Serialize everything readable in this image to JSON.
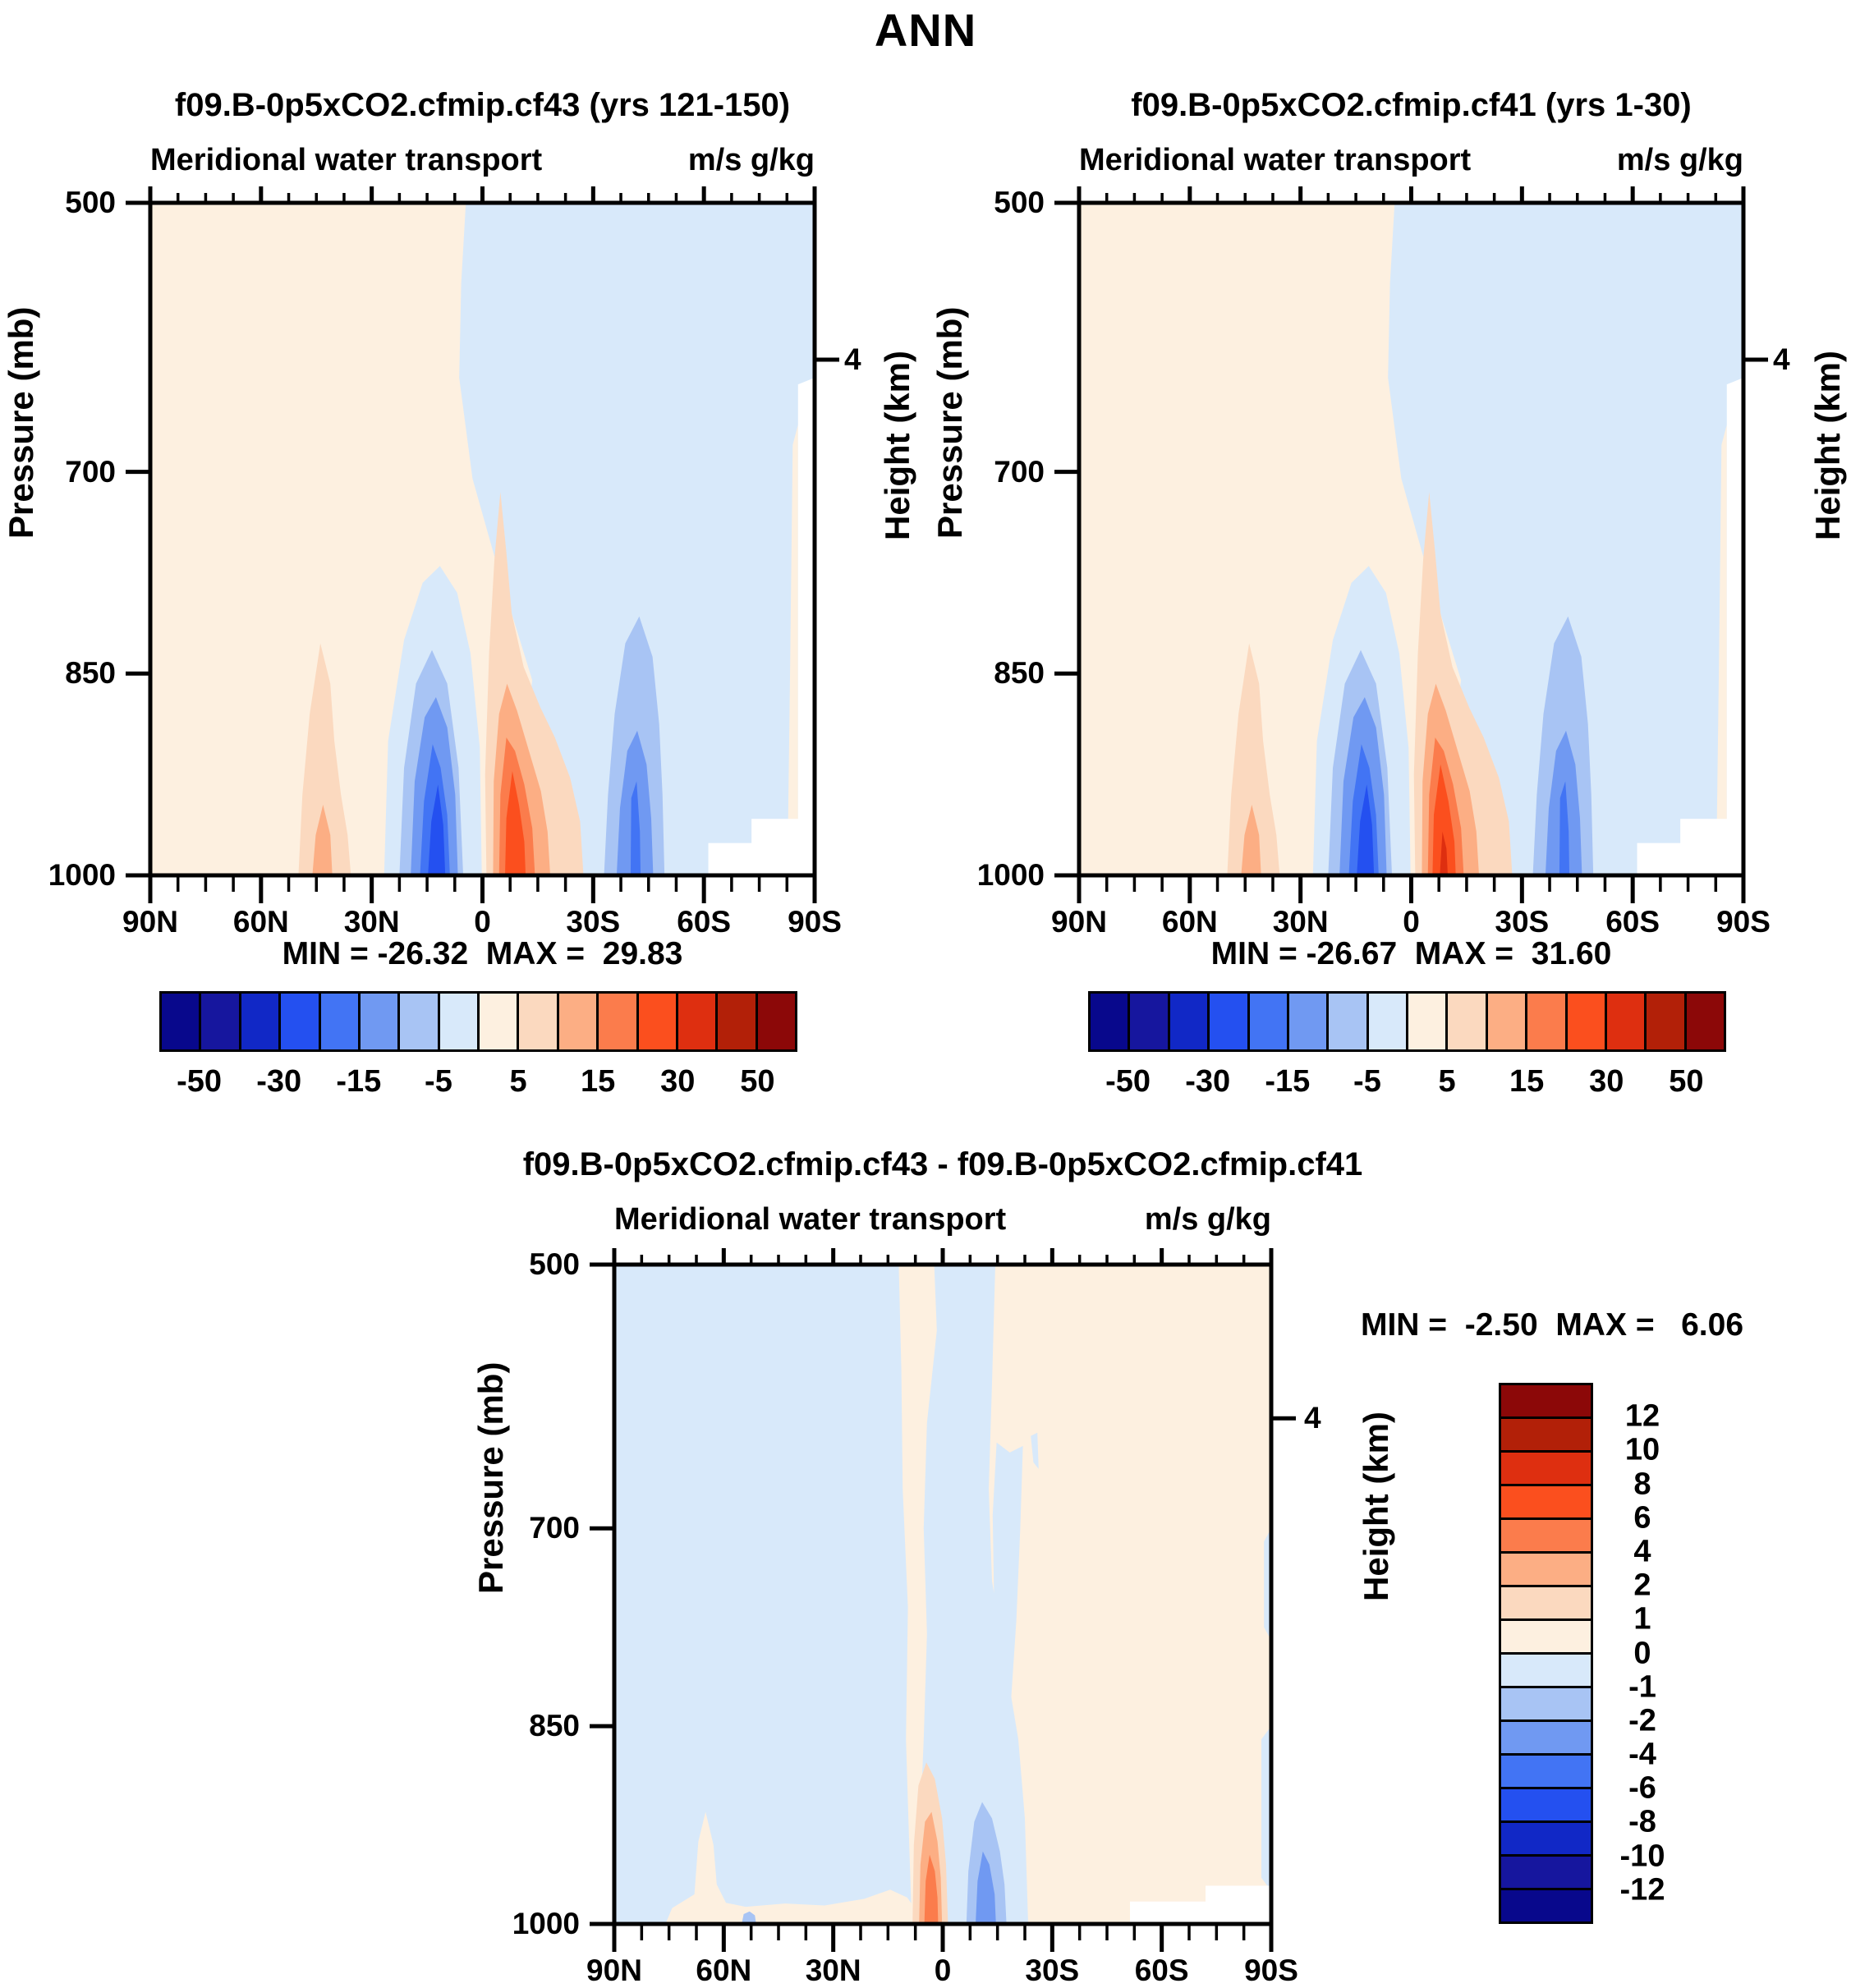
{
  "title": "ANN",
  "shared": {
    "field_label": "Meridional water transport",
    "units": "m/s g/kg",
    "y_axis_label": "Pressure (mb)",
    "right_axis_label": "Height (km)",
    "height_tick_label": "4",
    "x_tick_labels": [
      "90N",
      "60N",
      "30N",
      "0",
      "30S",
      "60S",
      "90S"
    ],
    "y_tick_labels": [
      "500",
      "700",
      "850",
      "1000"
    ]
  },
  "palette": [
    "#08088C",
    "#16169E",
    "#1128C6",
    "#2450F0",
    "#4274F4",
    "#7099F2",
    "#A8C4F4",
    "#D8E9FA",
    "#FDF0E0",
    "#FBD9BF",
    "#FCAE84",
    "#FB7C4C",
    "#FB4F1E",
    "#DE2F10",
    "#B22008",
    "#8C0808"
  ],
  "colorbar_h_labels": [
    "-50",
    "-30",
    "-15",
    "-5",
    "5",
    "15",
    "30",
    "50"
  ],
  "colorbar_v_labels": [
    "12",
    "10",
    "8",
    "6",
    "4",
    "2",
    "1",
    "0",
    "-1",
    "-2",
    "-4",
    "-6",
    "-8",
    "-10",
    "-12"
  ],
  "panels": {
    "left": {
      "title": "f09.B-0p5xCO2.cfmip.cf43 (yrs 121-150)",
      "stats": "MIN = -26.32  MAX =  29.83"
    },
    "right": {
      "title": "f09.B-0p5xCO2.cfmip.cf41 (yrs 1-30)",
      "stats": "MIN = -26.67  MAX =  31.60"
    },
    "diff": {
      "title": "f09.B-0p5xCO2.cfmip.cf43 - f09.B-0p5xCO2.cfmip.cf41",
      "stats": "MIN =  -2.50  MAX =   6.06"
    }
  },
  "chart_data": [
    {
      "type": "heatmap",
      "subtype": "filled-contour latitude-pressure cross-section",
      "title": "f09.B-0p5xCO2.cfmip.cf43 (yrs 121-150)",
      "variable": "Meridional water transport",
      "units": "m/s g/kg",
      "season": "ANN",
      "xlabel": "latitude",
      "x_ticks": [
        "90N",
        "60N",
        "30N",
        "0",
        "30S",
        "60S",
        "90S"
      ],
      "ylabel": "Pressure (mb)",
      "y_ticks": [
        500,
        700,
        850,
        1000
      ],
      "y2label": "Height (km)",
      "y2_ticks": [
        4
      ],
      "min": -26.32,
      "max": 29.83,
      "contour_levels": [
        -50,
        -40,
        -30,
        -20,
        -15,
        -10,
        -5,
        0,
        5,
        10,
        15,
        20,
        30,
        40,
        50
      ],
      "labeled_levels": [
        -50,
        -30,
        -15,
        -5,
        5,
        15,
        30,
        50
      ],
      "legend_position": "horizontal colorbar below panel",
      "grid": false,
      "features": [
        "weak positive (0 to 5) background over NH from 90N to ~0-5N at all levels",
        "weak negative (-5 to 0) background over SH mid/high latitudes",
        "positive cell (5 to 15) near 40-50N below ~850 mb",
        "strong negative cell, core -20 to -26 (min -26.32), centered ~10-15N near 950-1000 mb",
        "strong positive cell, core 20 to 30 (max 29.83), centered ~5-15S near surface extending to ~700 mb near 5S",
        "moderate negative cell (-10 to -15) centered ~40S below ~800 mb",
        "white masked topography (Antarctica) ~60-90S below ~950 mb"
      ]
    },
    {
      "type": "heatmap",
      "subtype": "filled-contour latitude-pressure cross-section",
      "title": "f09.B-0p5xCO2.cfmip.cf41 (yrs 1-30)",
      "variable": "Meridional water transport",
      "units": "m/s g/kg",
      "season": "ANN",
      "xlabel": "latitude",
      "x_ticks": [
        "90N",
        "60N",
        "30N",
        "0",
        "30S",
        "60S",
        "90S"
      ],
      "ylabel": "Pressure (mb)",
      "y_ticks": [
        500,
        700,
        850,
        1000
      ],
      "y2label": "Height (km)",
      "y2_ticks": [
        4
      ],
      "min": -26.67,
      "max": 31.6,
      "contour_levels": [
        -50,
        -40,
        -30,
        -20,
        -15,
        -10,
        -5,
        0,
        5,
        10,
        15,
        20,
        30,
        40,
        50
      ],
      "labeled_levels": [
        -50,
        -30,
        -15,
        -5,
        5,
        15,
        30,
        50
      ],
      "legend_position": "horizontal colorbar below panel",
      "grid": false,
      "features": [
        "field nearly identical to cf43 panel",
        "strong negative cell (min -26.67) centered ~10-15N near surface",
        "strong positive cell (max 31.60, small core exceeding 30) centered ~5-15S near surface",
        "moderate negative cell centered ~40S below ~800 mb",
        "white masked topography ~60-90S below ~950 mb"
      ]
    },
    {
      "type": "heatmap",
      "subtype": "filled-contour latitude-pressure difference section",
      "title": "f09.B-0p5xCO2.cfmip.cf43 - f09.B-0p5xCO2.cfmip.cf41",
      "variable": "Meridional water transport",
      "units": "m/s g/kg",
      "season": "ANN",
      "xlabel": "latitude",
      "x_ticks": [
        "90N",
        "60N",
        "30N",
        "0",
        "30S",
        "60S",
        "90S"
      ],
      "ylabel": "Pressure (mb)",
      "y_ticks": [
        500,
        700,
        850,
        1000
      ],
      "y2label": "Height (km)",
      "y2_ticks": [
        4
      ],
      "min": -2.5,
      "max": 6.06,
      "contour_levels": [
        -12,
        -10,
        -8,
        -6,
        -4,
        -2,
        -1,
        0,
        1,
        2,
        4,
        6,
        8,
        10,
        12
      ],
      "labeled_levels": [
        12,
        10,
        8,
        6,
        4,
        2,
        1,
        0,
        -1,
        -2,
        -4,
        -6,
        -8,
        -10,
        -12
      ],
      "legend_position": "vertical colorbar at right",
      "grid": false,
      "features": [
        "weak negative (-1 to 0) over most of NH",
        "weak positive (0 to 1) over most of SH and a narrow full-depth column near 0-5N",
        "positive cell (max 6.06, core 4-6) near 0-5S below ~900 mb",
        "negative cell (min -2.50, core -4 to -2) near 5-12S below ~900 mb",
        "small positive bump near 65-72N at surface",
        "white masked topography ~65-90S near surface"
      ]
    }
  ],
  "fields": {
    "left": [
      {
        "c": 8,
        "r": [
          0,
          0,
          100,
          100
        ],
        "n": "background-positive"
      },
      {
        "c": 7,
        "p": "47.5,0 100,0 100,100 57.5,100 55.5,86 57.5,71 52.5,55 48.5,41 46.5,26 46.8,12",
        "n": "background-negative-sh"
      },
      {
        "c": 7,
        "p": "35.2,100 35.8,80 38.2,65 41,56.5 43.6,54 46.2,58 48.2,67 49.6,81 49.9,100",
        "n": "nh-negative-dome"
      },
      {
        "c": 6,
        "p": "37.5,100 38.2,84 40,71.5 42.4,66.5 44.7,71.5 46.4,84 47.1,100",
        "n": "nh-negative-cell"
      },
      {
        "c": 5,
        "p": "39.2,100 39.8,86 41.3,76.5 43,73.5 44.7,78 45.9,88 46.3,100",
        "n": "nh-negative-cell"
      },
      {
        "c": 4,
        "p": "40.6,100 41.2,89 42.5,80.5 43.7,84 44.7,91 45.1,100",
        "n": "nh-negative-cell"
      },
      {
        "c": 3,
        "p": "41.8,100 42.3,92 43.3,86.5 44.1,92.5 44.4,100",
        "n": "nh-negative-core"
      },
      {
        "c": 9,
        "p": "50.6,100 50.4,85 51,67 51.8,53 52.7,43 53.6,52 54.4,61 56.2,69 58.7,75 60.9,79.5 63.2,85.5 64.7,92 65.2,100",
        "n": "sh-positive-mass"
      },
      {
        "c": 10,
        "p": "51.6,100 51.7,86 52.5,76 53.7,71.5 55.2,75.5 57,81.5 58.8,87.5 59.8,93.5 60.2,100",
        "n": "sh-positive-cell"
      },
      {
        "c": 11,
        "p": "52.5,100 52.7,88 53.6,79.5 54.9,81.5 56.3,86.5 57.5,93 57.9,100",
        "n": "sh-positive-cell"
      },
      {
        "c": 12,
        "p": "53.4,100 53.6,91.5 54.5,84.5 55.5,89.5 56.3,95 56.5,100",
        "n": "sh-positive-core"
      },
      {
        "c": 9,
        "p": "22.3,100 22.9,88 24,76 25.6,65.5 27.1,71.5 27.7,80 28.7,88 29.7,94 30.2,100",
        "n": "nh-midlat-positive"
      },
      {
        "c": 10,
        "p": "24.4,100 24.9,94 26,89.5 27.1,94 27.4,100",
        "n": "nh-midlat-positive-core"
      },
      {
        "c": 6,
        "p": "68.3,100 68.9,88 69.9,76 71.5,65.5 73.6,61.5 75.6,67.5 76.6,77.5 77.1,88 77.4,100",
        "n": "sh-midlat-negative"
      },
      {
        "c": 5,
        "p": "70.2,100 70.7,90 71.8,81.5 73.3,78.5 74.7,83.5 75.4,91.5 75.7,100",
        "n": "sh-midlat-negative-cell"
      },
      {
        "c": 4,
        "p": "72.3,100 72.4,88.5 73.2,86 73.7,93.5 73.8,100",
        "n": "sh-midlat-negative-streak"
      },
      {
        "c": 8,
        "p": "95.9,100 96.3,70 96.7,36 97.5,33 97.5,100",
        "n": "polar-edge-positive-sliver"
      },
      {
        "c": "w",
        "p": "97.5,27 100,26 100,100 97.5,100",
        "n": "topography-mask"
      },
      {
        "c": "w",
        "r": [
          84,
          95.2,
          16,
          4.8
        ],
        "n": "topography-mask"
      },
      {
        "c": "w",
        "r": [
          90.5,
          91.6,
          9.5,
          8.4
        ],
        "n": "topography-mask"
      }
    ],
    "right": [
      {
        "c": 8,
        "r": [
          0,
          0,
          100,
          100
        ],
        "n": "background-positive"
      },
      {
        "c": 7,
        "p": "47.5,0 100,0 100,100 57.5,100 55.5,86 57.5,71 52.5,55 48.5,41 46.5,26 46.8,12",
        "n": "background-negative-sh"
      },
      {
        "c": 7,
        "p": "35.2,100 35.8,80 38.2,65 41,56.5 43.6,54 46.2,58 48.2,67 49.6,81 49.9,100",
        "n": "nh-negative-dome"
      },
      {
        "c": 6,
        "p": "37.5,100 38.2,84 40,71.5 42.4,66.5 44.7,71.5 46.4,84 47.1,100",
        "n": "nh-negative-cell"
      },
      {
        "c": 5,
        "p": "39.2,100 39.8,86 41.3,76.5 43,73.5 44.7,78 45.9,88 46.3,100",
        "n": "nh-negative-cell"
      },
      {
        "c": 4,
        "p": "40.6,100 41.2,89 42.5,80.5 43.7,84 44.7,91 45.1,100",
        "n": "nh-negative-cell"
      },
      {
        "c": 3,
        "p": "41.8,100 42.3,92 43.3,86.5 44.1,92.5 44.4,100",
        "n": "nh-negative-core"
      },
      {
        "c": 9,
        "p": "50.6,100 50.4,85 51,67 51.8,53 52.7,43 53.6,52 54.4,61 56.2,69 58.7,75 60.9,79.5 63.2,85.5 64.7,92 65.2,100",
        "n": "sh-positive-mass"
      },
      {
        "c": 10,
        "p": "51.6,100 51.7,86 52.5,76 53.7,71.5 55.2,75.5 57,81.5 58.8,87.5 59.8,93.5 60.2,100",
        "n": "sh-positive-cell"
      },
      {
        "c": 11,
        "p": "52.5,100 52.7,88 53.6,79.5 54.9,81.5 56.3,86.5 57.5,93 57.9,100",
        "n": "sh-positive-cell"
      },
      {
        "c": 12,
        "p": "53.2,100 53.4,91 54.4,83.5 55.6,89 56.5,95 56.7,100",
        "n": "sh-positive-core"
      },
      {
        "c": 13,
        "p": "54.3,100 54.7,93.5 55.3,96 55.5,100",
        "n": "sh-positive-core-max"
      },
      {
        "c": 9,
        "p": "22.3,100 22.9,88 24,76 25.6,65.5 27.1,71.5 27.7,80 28.7,88 29.7,94 30.2,100",
        "n": "nh-midlat-positive"
      },
      {
        "c": 10,
        "p": "24.4,100 24.9,94 26,89.5 27.1,94 27.4,100",
        "n": "nh-midlat-positive-core"
      },
      {
        "c": 6,
        "p": "68.3,100 68.9,88 69.9,76 71.5,65.5 73.6,61.5 75.6,67.5 76.6,77.5 77.1,88 77.4,100",
        "n": "sh-midlat-negative"
      },
      {
        "c": 5,
        "p": "70.2,100 70.7,90 71.8,81.5 73.3,78.5 74.7,83.5 75.4,91.5 75.7,100",
        "n": "sh-midlat-negative-cell"
      },
      {
        "c": 4,
        "p": "72.3,100 72.4,88.5 73.2,86 73.7,93.5 73.8,100",
        "n": "sh-midlat-negative-streak"
      },
      {
        "c": 8,
        "p": "95.9,100 96.3,70 96.7,36 97.5,33 97.5,100",
        "n": "polar-edge-positive-sliver"
      },
      {
        "c": "w",
        "p": "97.5,27 100,26 100,100 97.5,100",
        "n": "topography-mask"
      },
      {
        "c": "w",
        "r": [
          84,
          95.2,
          16,
          4.8
        ],
        "n": "topography-mask"
      },
      {
        "c": "w",
        "r": [
          90.5,
          91.6,
          9.5,
          8.4
        ],
        "n": "topography-mask"
      }
    ],
    "diff": [
      {
        "c": 7,
        "r": [
          0,
          0,
          100,
          100
        ],
        "n": "background-negative"
      },
      {
        "c": 8,
        "p": "58,0 100,0 100,100 63,100 62.5,84 61.5,72 59.5,60 57.5,48 57,34 57.5,18",
        "n": "background-positive-sh"
      },
      {
        "c": 7,
        "p": "58.2,27 60.2,28.5 62.2,27.5 61.8,40 61.2,54 60.4,66 59.3,74 58.2,64 57.8,50 57.6,38",
        "n": "positive-region-blue-wedge"
      },
      {
        "c": 7,
        "p": "63.4,26 64.4,25.5 64.6,31 63.8,30",
        "n": "positive-region-blue-notch"
      },
      {
        "c": 8,
        "p": "43.3,0 48.7,0 49.1,10 47.6,24 47.1,40 47.6,56 47.1,72 46.6,84 47.3,92 48.7,97 49.7,100 45.3,100 44.9,88 44.4,72 44.7,52 43.9,34 43.7,16",
        "n": "equatorial-positive-column"
      },
      {
        "c": 8,
        "p": "7.8,100 8.8,97.6 12.2,95.5 12.8,87.5 13.9,83 15.1,88 15.6,94 17,96.8 20,97.4 26,96.9 32,97.2 38,96.2 42,94.8 44.6,96 46,98 46.5,100",
        "n": "nh-surface-positive-strip"
      },
      {
        "c": 6,
        "p": "19.4,100 19.7,98.5 20.6,98.1 21.4,98.7 21.6,100",
        "n": "nh-surface-negative-blob"
      },
      {
        "c": 9,
        "p": "45.4,100 45.6,88 46.3,79 47.5,75.5 48.8,78 49.9,84 50.5,91 50.8,100",
        "n": "equatorial-positive-cell"
      },
      {
        "c": 10,
        "p": "46.4,100 46.6,91 47.3,84.5 48.3,83 49.2,87.5 49.7,93 49.9,100",
        "n": "equatorial-positive-cell"
      },
      {
        "c": 11,
        "p": "47.2,100 47.4,93.5 48,89.5 48.8,92 49.2,96 49.3,100",
        "n": "equatorial-positive-core"
      },
      {
        "c": 6,
        "p": "53.6,100 53.9,92 54.8,84.5 56,81.5 57.5,84 58.7,89 59.4,94 59.7,100",
        "n": "sh-negative-cell"
      },
      {
        "c": 5,
        "p": "55,100 55.3,93.5 56.1,89 57.1,91 57.9,95.5 58.1,100",
        "n": "sh-negative-core"
      },
      {
        "c": 7,
        "p": "98.9,42 100,40 100,57 98.9,55",
        "n": "polar-edge-negative-sliver"
      },
      {
        "c": 7,
        "p": "98.5,72 100,70 100,95 98.5,93",
        "n": "polar-edge-negative-sliver"
      },
      {
        "c": "w",
        "r": [
          78.5,
          96.6,
          21.5,
          3.4
        ],
        "n": "topography-mask"
      },
      {
        "c": "w",
        "r": [
          90,
          94.2,
          10,
          5.8
        ],
        "n": "topography-mask"
      }
    ]
  }
}
